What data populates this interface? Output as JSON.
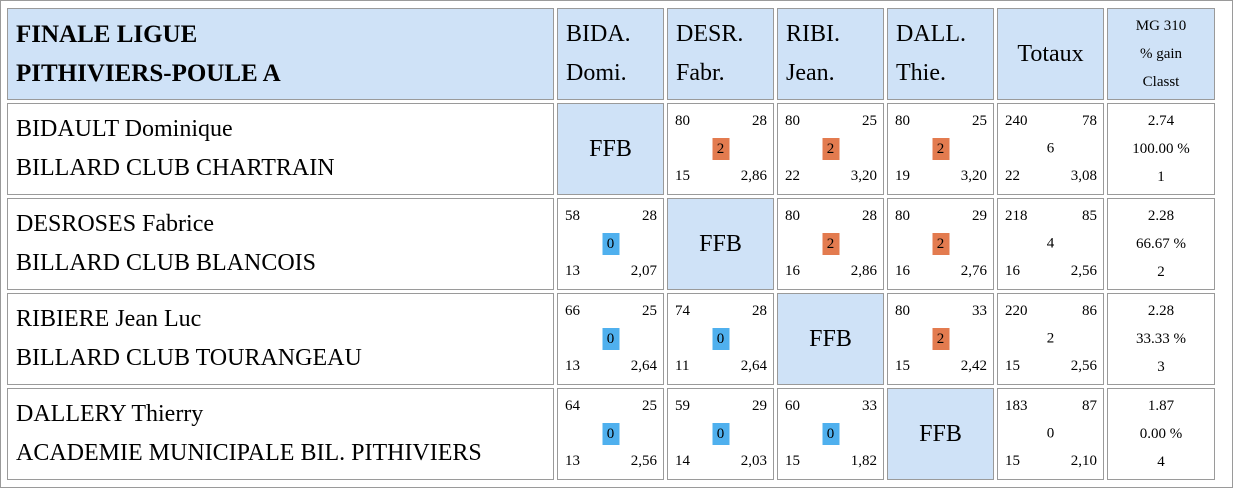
{
  "title": {
    "line1": "FINALE LIGUE",
    "line2": "PITHIVIERS-POULE A"
  },
  "columns": [
    {
      "line1": "BIDA.",
      "line2": "Domi."
    },
    {
      "line1": "DESR.",
      "line2": "Fabr."
    },
    {
      "line1": "RIBI.",
      "line2": "Jean."
    },
    {
      "line1": "DALL.",
      "line2": "Thie."
    }
  ],
  "totals_header": "Totaux",
  "mg_header": {
    "line1": "MG 310",
    "line2": "% gain",
    "line3": "Classt"
  },
  "self_cell": "FFB",
  "colors": {
    "header_bg": "#cfe2f7",
    "win_badge": "#e37b4f",
    "loss_badge": "#4fb0ee"
  },
  "rows": [
    {
      "name": "BIDAULT Dominique",
      "club": "BILLARD CLUB CHARTRAIN",
      "cells": [
        null,
        {
          "pts": "80",
          "reprises": "28",
          "result": "2",
          "serie": "15",
          "moy": "2,86"
        },
        {
          "pts": "80",
          "reprises": "25",
          "result": "2",
          "serie": "22",
          "moy": "3,20"
        },
        {
          "pts": "80",
          "reprises": "25",
          "result": "2",
          "serie": "19",
          "moy": "3,20"
        }
      ],
      "totals": {
        "pts": "240",
        "reprises": "78",
        "result": "6",
        "serie": "22",
        "moy": "3,08"
      },
      "stats": {
        "mg": "2.74",
        "pct": "100.00 %",
        "rank": "1"
      }
    },
    {
      "name": "DESROSES Fabrice",
      "club": "BILLARD CLUB BLANCOIS",
      "cells": [
        {
          "pts": "58",
          "reprises": "28",
          "result": "0",
          "serie": "13",
          "moy": "2,07"
        },
        null,
        {
          "pts": "80",
          "reprises": "28",
          "result": "2",
          "serie": "16",
          "moy": "2,86"
        },
        {
          "pts": "80",
          "reprises": "29",
          "result": "2",
          "serie": "16",
          "moy": "2,76"
        }
      ],
      "totals": {
        "pts": "218",
        "reprises": "85",
        "result": "4",
        "serie": "16",
        "moy": "2,56"
      },
      "stats": {
        "mg": "2.28",
        "pct": "66.67 %",
        "rank": "2"
      }
    },
    {
      "name": "RIBIERE Jean Luc",
      "club": "BILLARD CLUB TOURANGEAU",
      "cells": [
        {
          "pts": "66",
          "reprises": "25",
          "result": "0",
          "serie": "13",
          "moy": "2,64"
        },
        {
          "pts": "74",
          "reprises": "28",
          "result": "0",
          "serie": "11",
          "moy": "2,64"
        },
        null,
        {
          "pts": "80",
          "reprises": "33",
          "result": "2",
          "serie": "15",
          "moy": "2,42"
        }
      ],
      "totals": {
        "pts": "220",
        "reprises": "86",
        "result": "2",
        "serie": "15",
        "moy": "2,56"
      },
      "stats": {
        "mg": "2.28",
        "pct": "33.33 %",
        "rank": "3"
      }
    },
    {
      "name": "DALLERY Thierry",
      "club": "ACADEMIE MUNICIPALE BIL. PITHIVIERS",
      "cells": [
        {
          "pts": "64",
          "reprises": "25",
          "result": "0",
          "serie": "13",
          "moy": "2,56"
        },
        {
          "pts": "59",
          "reprises": "29",
          "result": "0",
          "serie": "14",
          "moy": "2,03"
        },
        {
          "pts": "60",
          "reprises": "33",
          "result": "0",
          "serie": "15",
          "moy": "1,82"
        },
        null
      ],
      "totals": {
        "pts": "183",
        "reprises": "87",
        "result": "0",
        "serie": "15",
        "moy": "2,10"
      },
      "stats": {
        "mg": "1.87",
        "pct": "0.00 %",
        "rank": "4"
      }
    }
  ]
}
